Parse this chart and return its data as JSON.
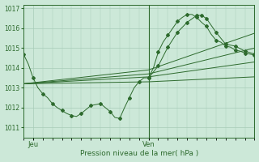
{
  "bg_color": "#cce8d8",
  "grid_color": "#a8ccb8",
  "line_color": "#2d6a2d",
  "title": "Pression niveau de la mer( hPa )",
  "xlabel_jeu": "Jeu",
  "xlabel_ven": "Ven",
  "ylim": [
    1010.5,
    1017.2
  ],
  "yticks": [
    1011,
    1012,
    1013,
    1014,
    1015,
    1016,
    1017
  ],
  "xlim": [
    0,
    48
  ],
  "jeu_x": 2,
  "ven_x": 26,
  "vline_x": 26,
  "zigzag": {
    "x": [
      0,
      1,
      2,
      3,
      4,
      5,
      6,
      7,
      8,
      9,
      10,
      11,
      12,
      13,
      14,
      15,
      16,
      17,
      18,
      19,
      20,
      21,
      22,
      23,
      24,
      25,
      26,
      27,
      28,
      29,
      30,
      31,
      32,
      33,
      34,
      35,
      36,
      37,
      38,
      39,
      40,
      41,
      42,
      43,
      44,
      45,
      46,
      47,
      48
    ],
    "y": [
      1014.7,
      1014.2,
      1013.5,
      1013.0,
      1012.7,
      1012.5,
      1012.2,
      1012.0,
      1011.85,
      1011.7,
      1011.6,
      1011.55,
      1011.7,
      1011.9,
      1012.1,
      1012.15,
      1012.2,
      1012.0,
      1011.8,
      1011.5,
      1011.45,
      1012.0,
      1012.5,
      1013.0,
      1013.3,
      1013.5,
      1013.5,
      1014.0,
      1014.8,
      1015.3,
      1015.65,
      1016.0,
      1016.35,
      1016.55,
      1016.7,
      1016.7,
      1016.55,
      1016.3,
      1016.1,
      1015.7,
      1015.4,
      1015.3,
      1015.1,
      1015.05,
      1014.9,
      1014.85,
      1014.75,
      1014.7,
      1014.65
    ]
  },
  "post_ven": {
    "x": [
      26,
      28,
      30,
      32,
      34,
      36,
      37,
      38,
      40,
      42,
      44,
      46,
      48
    ],
    "y": [
      1013.5,
      1014.1,
      1015.05,
      1015.8,
      1016.3,
      1016.65,
      1016.65,
      1016.5,
      1015.8,
      1015.2,
      1015.1,
      1014.85,
      1014.7
    ]
  },
  "fan_lines": [
    {
      "x": [
        0,
        26,
        48
      ],
      "y": [
        1013.2,
        1013.3,
        1013.55
      ]
    },
    {
      "x": [
        0,
        26,
        48
      ],
      "y": [
        1013.2,
        1013.55,
        1014.3
      ]
    },
    {
      "x": [
        0,
        26,
        48
      ],
      "y": [
        1013.2,
        1013.7,
        1015.0
      ]
    },
    {
      "x": [
        0,
        26,
        48
      ],
      "y": [
        1013.2,
        1013.9,
        1015.75
      ]
    }
  ]
}
